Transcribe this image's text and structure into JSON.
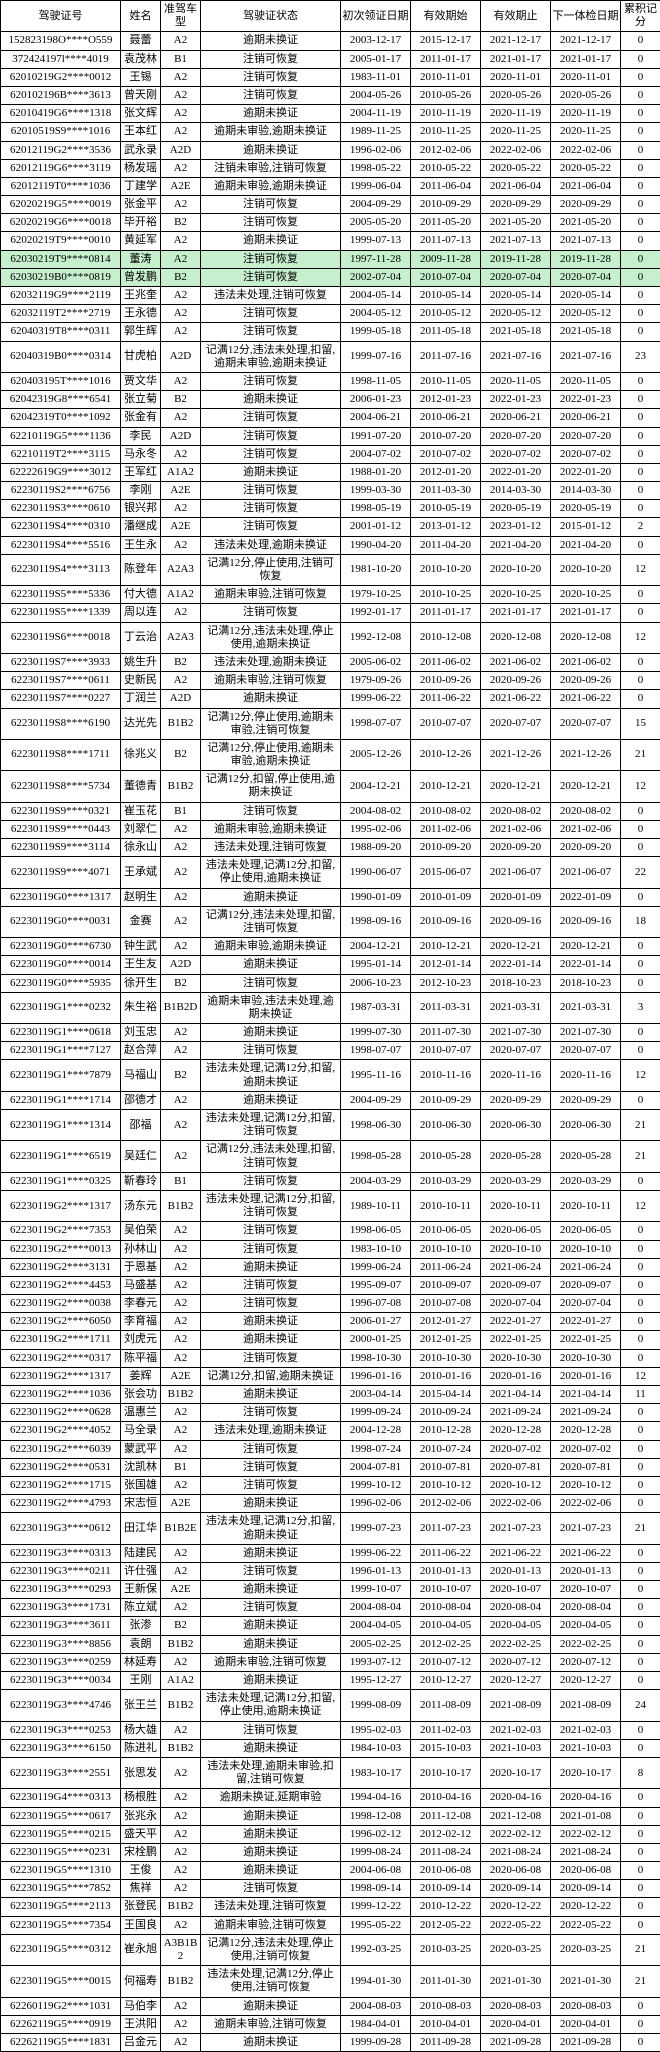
{
  "columns": [
    "驾驶证号",
    "姓名",
    "准驾车型",
    "驾驶证状态",
    "初次领证日期",
    "有效期始",
    "有效期止",
    "下一体检日期",
    "累积记分"
  ],
  "widths": [
    120,
    40,
    40,
    140,
    70,
    70,
    70,
    70,
    40
  ],
  "rows": [
    [
      "152823198O****O559",
      "聂蕾",
      "A2",
      "逾期未换证",
      "2003-12-17",
      "2015-12-17",
      "2021-12-17",
      "2021-12-17",
      "0"
    ],
    [
      "372424197l****4019",
      "袁茂林",
      "B1",
      "注销可恢复",
      "2005-01-17",
      "2011-01-17",
      "2021-01-17",
      "2021-01-17",
      "0"
    ],
    [
      "62010219G2****0012",
      "王锡",
      "A2",
      "注销可恢复",
      "1983-11-01",
      "2010-11-01",
      "2020-11-01",
      "2020-11-01",
      "0"
    ],
    [
      "620102196B****3613",
      "曾天刚",
      "A2",
      "注销可恢复",
      "2004-05-26",
      "2010-05-26",
      "2020-05-26",
      "2020-05-26",
      "0"
    ],
    [
      "62010419G6****1318",
      "张文辉",
      "A2",
      "逾期未换证",
      "2004-11-19",
      "2010-11-19",
      "2020-11-19",
      "2020-11-19",
      "0"
    ],
    [
      "62010519S9****1016",
      "王本红",
      "A2",
      "逾期未审验,逾期未换证",
      "1989-11-25",
      "2010-11-25",
      "2020-11-25",
      "2020-11-25",
      "0"
    ],
    [
      "62012119G2****3536",
      "武永录",
      "A2D",
      "逾期未换证",
      "1996-02-06",
      "2012-02-06",
      "2022-02-06",
      "2022-02-06",
      "0"
    ],
    [
      "62012119G6****3119",
      "杨发瑶",
      "A2",
      "注销未审验,注销可恢复",
      "1998-05-22",
      "2010-05-22",
      "2020-05-22",
      "2020-05-22",
      "0"
    ],
    [
      "62012119T0****1036",
      "丁建学",
      "A2E",
      "逾期未审验,逾期未换证",
      "1999-06-04",
      "2011-06-04",
      "2021-06-04",
      "2021-06-04",
      "0"
    ],
    [
      "62020219G5****0019",
      "张金平",
      "A2",
      "注销可恢复",
      "2004-09-29",
      "2010-09-29",
      "2020-09-29",
      "2020-09-29",
      "0"
    ],
    [
      "62020219G6****0018",
      "毕开裕",
      "B2",
      "注销可恢复",
      "2005-05-20",
      "2011-05-20",
      "2021-05-20",
      "2021-05-20",
      "0"
    ],
    [
      "62020219T9****0010",
      "黄延军",
      "A2",
      "逾期未换证",
      "1999-07-13",
      "2011-07-13",
      "2021-07-13",
      "2021-07-13",
      "0"
    ],
    [
      "62030219T9****0814",
      "董涛",
      "A2",
      "注销可恢复",
      "1997-11-28",
      "2009-11-28",
      "2019-11-28",
      "2019-11-28",
      "0",
      true
    ],
    [
      "62030219B0****0819",
      "曾发鹏",
      "B2",
      "注销可恢复",
      "2002-07-04",
      "2010-07-04",
      "2020-07-04",
      "2020-07-04",
      "0",
      true
    ],
    [
      "62032119G9****2119",
      "王兆奎",
      "A2",
      "违法未处理,注销可恢复",
      "2004-05-14",
      "2010-05-14",
      "2020-05-14",
      "2020-05-14",
      "0"
    ],
    [
      "62032119T2****2719",
      "王永德",
      "A2",
      "注销可恢复",
      "2004-05-12",
      "2010-05-12",
      "2020-05-12",
      "2020-05-12",
      "0"
    ],
    [
      "62040319T8****0311",
      "郭生辉",
      "A2",
      "注销可恢复",
      "1999-05-18",
      "2011-05-18",
      "2021-05-18",
      "2021-05-18",
      "0"
    ],
    [
      "62040319B0****0314",
      "甘虎柏",
      "A2D",
      "记满12分,违法未处理,扣留,逾期未审验,逾期未换证",
      "1999-07-16",
      "2011-07-16",
      "2021-07-16",
      "2021-07-16",
      "23"
    ],
    [
      "620403195T****1016",
      "贾文华",
      "A2",
      "注销可恢复",
      "1998-11-05",
      "2010-11-05",
      "2020-11-05",
      "2020-11-05",
      "0"
    ],
    [
      "62042319G8****6541",
      "张立菊",
      "B2",
      "逾期未换证",
      "2006-01-23",
      "2012-01-23",
      "2022-01-23",
      "2022-01-23",
      "0"
    ],
    [
      "62042319T0****1092",
      "张金有",
      "A2",
      "注销可恢复",
      "2004-06-21",
      "2010-06-21",
      "2020-06-21",
      "2020-06-21",
      "0"
    ],
    [
      "62210119G5****1136",
      "李民",
      "A2D",
      "注销可恢复",
      "1991-07-20",
      "2010-07-20",
      "2020-07-20",
      "2020-07-20",
      "0"
    ],
    [
      "62210119T2****3115",
      "马永冬",
      "A2",
      "注销可恢复",
      "2004-07-02",
      "2010-07-02",
      "2020-07-02",
      "2020-07-02",
      "0"
    ],
    [
      "62222619G9****3012",
      "王军红",
      "A1A2",
      "逾期未换证",
      "1988-01-20",
      "2012-01-20",
      "2022-01-20",
      "2022-01-20",
      "0"
    ],
    [
      "62230119S2****6756",
      "李刚",
      "A2E",
      "注销可恢复",
      "1999-03-30",
      "2011-03-30",
      "2014-03-30",
      "2014-03-30",
      "0"
    ],
    [
      "62230119S3****0610",
      "银兴邦",
      "A2",
      "注销可恢复",
      "1998-05-19",
      "2010-05-19",
      "2020-05-19",
      "2020-05-19",
      "0"
    ],
    [
      "62230119S4****0310",
      "潘继成",
      "A2E",
      "注销可恢复",
      "2001-01-12",
      "2013-01-12",
      "2023-01-12",
      "2015-01-12",
      "2"
    ],
    [
      "62230119S4****5516",
      "王生永",
      "A2",
      "违法未处理,逾期未换证",
      "1990-04-20",
      "2011-04-20",
      "2021-04-20",
      "2021-04-20",
      "0"
    ],
    [
      "62230119S4****3113",
      "陈登年",
      "A2A3",
      "记满12分,停止使用,注销可恢复",
      "1981-10-20",
      "2010-10-20",
      "2020-10-20",
      "2020-10-20",
      "12"
    ],
    [
      "62230119S5****5336",
      "付大德",
      "A1A2",
      "逾期未审验,注销可恢复",
      "1979-10-25",
      "2010-10-25",
      "2020-10-25",
      "2020-10-25",
      "0"
    ],
    [
      "62230119S5****1339",
      "周以连",
      "A2",
      "注销可恢复",
      "1992-01-17",
      "2011-01-17",
      "2021-01-17",
      "2021-01-17",
      "0"
    ],
    [
      "62230119S6****0018",
      "丁云治",
      "A2A3",
      "记满12分,违法未处理,停止使用,逾期未换证",
      "1992-12-08",
      "2010-12-08",
      "2020-12-08",
      "2020-12-08",
      "12"
    ],
    [
      "62230119S7****3933",
      "姚生升",
      "B2",
      "违法未处理,逾期未换证",
      "2005-06-02",
      "2011-06-02",
      "2021-06-02",
      "2021-06-02",
      "0"
    ],
    [
      "62230119S7****0611",
      "史新民",
      "A2",
      "逾期未审验,注销可恢复",
      "1979-09-26",
      "2010-09-26",
      "2020-09-26",
      "2020-09-26",
      "0"
    ],
    [
      "62230119S7****0227",
      "丁润兰",
      "A2D",
      "逾期未换证",
      "1999-06-22",
      "2011-06-22",
      "2021-06-22",
      "2021-06-22",
      "0"
    ],
    [
      "62230119S8****6190",
      "达光先",
      "B1B2",
      "记满12分,停止使用,逾期未审验,注销可恢复",
      "1998-07-07",
      "2010-07-07",
      "2020-07-07",
      "2020-07-07",
      "15"
    ],
    [
      "62230119S8****1711",
      "徐兆义",
      "B2",
      "记满12分,停止使用,逾期未审验,逾期未换证",
      "2005-12-26",
      "2010-12-26",
      "2021-12-26",
      "2021-12-26",
      "21"
    ],
    [
      "62230119S8****5734",
      "董德青",
      "B1B2",
      "记满12分,扣留,停止使用,逾期未换证",
      "2004-12-21",
      "2010-12-21",
      "2020-12-21",
      "2020-12-21",
      "12"
    ],
    [
      "62230119S9****0321",
      "崔玉花",
      "B1",
      "注销可恢复",
      "2004-08-02",
      "2010-08-02",
      "2020-08-02",
      "2020-08-02",
      "0"
    ],
    [
      "62230119S9****0443",
      "刘翠仁",
      "A2",
      "逾期未审验,逾期未换证",
      "1995-02-06",
      "2011-02-06",
      "2021-02-06",
      "2021-02-06",
      "0"
    ],
    [
      "62230119S9****3114",
      "徐永山",
      "A2",
      "违法未处理,注销可恢复",
      "1988-09-20",
      "2010-09-20",
      "2020-09-20",
      "2020-09-20",
      "0"
    ],
    [
      "62230119S9****4071",
      "王承斌",
      "A2",
      "违法未处理,记满12分,扣留,停止使用,逾期未换证",
      "1990-06-07",
      "2015-06-07",
      "2021-06-07",
      "2021-06-07",
      "22"
    ],
    [
      "62230119G0****1317",
      "赵明生",
      "A2",
      "逾期未换证",
      "1990-01-09",
      "2010-01-09",
      "2020-01-09",
      "2022-01-09",
      "0"
    ],
    [
      "62230119G0****0031",
      "金赛",
      "A2",
      "记满12分,违法未处理,扣留,注销可恢复",
      "1998-09-16",
      "2010-09-16",
      "2020-09-16",
      "2020-09-16",
      "18"
    ],
    [
      "62230119G0****6730",
      "钟生武",
      "A2",
      "逾期未审验,逾期未换证",
      "2004-12-21",
      "2010-12-21",
      "2020-12-21",
      "2020-12-21",
      "0"
    ],
    [
      "62230119G0****0014",
      "王生友",
      "A2D",
      "逾期未换证",
      "1995-01-14",
      "2012-01-14",
      "2022-01-14",
      "2022-01-14",
      "0"
    ],
    [
      "62230119G0****5935",
      "徐开生",
      "B2",
      "注销可恢复",
      "2006-10-23",
      "2012-10-23",
      "2018-10-23",
      "2018-10-23",
      "0"
    ],
    [
      "62230119G1****0232",
      "朱生裕",
      "B1B2D",
      "逾期未审验,违法未处理,逾期未换证",
      "1987-03-31",
      "2011-03-31",
      "2021-03-31",
      "2021-03-31",
      "3"
    ],
    [
      "62230119G1****0618",
      "刘玉忠",
      "A2",
      "逾期未换证",
      "1999-07-30",
      "2011-07-30",
      "2021-07-30",
      "2021-07-30",
      "0"
    ],
    [
      "62230119G1****7127",
      "赵合萍",
      "A2",
      "注销可恢复",
      "1998-07-07",
      "2010-07-07",
      "2020-07-07",
      "2020-07-07",
      "0"
    ],
    [
      "62230119G1****7879",
      "马福山",
      "B2",
      "违法未处理,记满12分,扣留,逾期未换证",
      "1995-11-16",
      "2010-11-16",
      "2020-11-16",
      "2020-11-16",
      "12"
    ],
    [
      "62230119G1****1714",
      "邵德才",
      "A2",
      "逾期未换证",
      "2004-09-29",
      "2010-09-29",
      "2020-09-29",
      "2020-09-29",
      "0"
    ],
    [
      "62230119G1****1314",
      "邵福",
      "A2",
      "违法未处理,记满12分,扣留,注销可恢复",
      "1998-06-30",
      "2010-06-30",
      "2020-06-30",
      "2020-06-30",
      "21"
    ],
    [
      "62230119G1****6519",
      "吴廷仁",
      "A2",
      "记满12分,违法未处理,扣留,注销可恢复",
      "1998-05-28",
      "2010-05-28",
      "2020-05-28",
      "2020-05-28",
      "21"
    ],
    [
      "62230119G1****0325",
      "靳春玲",
      "B1",
      "注销可恢复",
      "2004-03-29",
      "2010-03-29",
      "2020-03-29",
      "2020-03-29",
      "0"
    ],
    [
      "62230119G2****1317",
      "汤东元",
      "B1B2",
      "违法未处理,记满12分,扣留,注销可恢复",
      "1989-10-11",
      "2010-10-11",
      "2020-10-11",
      "2020-10-11",
      "12"
    ],
    [
      "62230119G2****7353",
      "吴伯荣",
      "A2",
      "注销可恢复",
      "1998-06-05",
      "2010-06-05",
      "2020-06-05",
      "2020-06-05",
      "0"
    ],
    [
      "62230119G2****0013",
      "孙林山",
      "A2",
      "注销可恢复",
      "1983-10-10",
      "2010-10-10",
      "2020-10-10",
      "2020-10-10",
      "0"
    ],
    [
      "62230119G2****3131",
      "于恩基",
      "A2",
      "逾期未换证",
      "1999-06-24",
      "2011-06-24",
      "2021-06-24",
      "2021-06-24",
      "0"
    ],
    [
      "62230119G2****4453",
      "马盛基",
      "A2",
      "注销可恢复",
      "1995-09-07",
      "2010-09-07",
      "2020-09-07",
      "2020-09-07",
      "0"
    ],
    [
      "62230119G2****0038",
      "李春元",
      "A2",
      "注销可恢复",
      "1996-07-08",
      "2010-07-08",
      "2020-07-04",
      "2020-07-04",
      "0"
    ],
    [
      "62230119G2****6050",
      "李育福",
      "A2",
      "逾期未换证",
      "2006-01-27",
      "2012-01-27",
      "2022-01-27",
      "2022-01-27",
      "0"
    ],
    [
      "62230119G2****1711",
      "刘虎元",
      "A2",
      "逾期未换证",
      "2000-01-25",
      "2012-01-25",
      "2022-01-25",
      "2022-01-25",
      "0"
    ],
    [
      "62230119G2****0317",
      "陈平福",
      "A2",
      "注销可恢复",
      "1998-10-30",
      "2010-10-30",
      "2020-10-30",
      "2020-10-30",
      "0"
    ],
    [
      "62230119G2****1317",
      "姜辉",
      "A2E",
      "记满12分,扣留,逾期未换证",
      "1996-01-16",
      "2010-01-16",
      "2020-01-16",
      "2020-01-16",
      "12"
    ],
    [
      "62230119G2****1036",
      "张会功",
      "B1B2",
      "逾期未换证",
      "2003-04-14",
      "2015-04-14",
      "2021-04-14",
      "2021-04-14",
      "11"
    ],
    [
      "62230119G2****0628",
      "温惠兰",
      "A2",
      "注销可恢复",
      "1999-09-24",
      "2010-09-24",
      "2021-09-24",
      "2021-09-24",
      "0"
    ],
    [
      "62230119G2****4052",
      "马全录",
      "A2",
      "违法未处理,逾期未换证",
      "2004-12-28",
      "2010-12-28",
      "2020-12-28",
      "2020-12-28",
      "0"
    ],
    [
      "62230119G2****6039",
      "蒙武平",
      "A2",
      "注销可恢复",
      "1998-07-24",
      "2010-07-24",
      "2020-07-02",
      "2020-07-02",
      "0"
    ],
    [
      "62230119G2****0531",
      "沈凯林",
      "B1",
      "注销可恢复",
      "2004-07-81",
      "2010-07-81",
      "2020-07-81",
      "2020-07-81",
      "0"
    ],
    [
      "62230119G2****1715",
      "张国雄",
      "A2",
      "注销可恢复",
      "1999-10-12",
      "2010-10-12",
      "2020-10-12",
      "2020-10-12",
      "0"
    ],
    [
      "62230119G2****4793",
      "宋志恒",
      "A2E",
      "逾期未换证",
      "1996-02-06",
      "2012-02-06",
      "2022-02-06",
      "2022-02-06",
      "0"
    ],
    [
      "62230119G3****0612",
      "田江华",
      "B1B2E",
      "违法未处理,记满12分,扣留,逾期未换证",
      "1999-07-23",
      "2011-07-23",
      "2021-07-23",
      "2021-07-23",
      "21"
    ],
    [
      "62230119G3****0313",
      "陆建民",
      "A2",
      "逾期未换证",
      "1999-06-22",
      "2011-06-22",
      "2021-06-22",
      "2021-06-22",
      "0"
    ],
    [
      "62230119G3****0211",
      "许仕强",
      "A2",
      "注销可恢复",
      "1996-01-13",
      "2010-01-13",
      "2020-01-13",
      "2020-01-13",
      "0"
    ],
    [
      "62230119G3****0293",
      "王新保",
      "A2E",
      "逾期未换证",
      "1999-10-07",
      "2010-10-07",
      "2020-10-07",
      "2020-10-07",
      "0"
    ],
    [
      "62230119G3****1731",
      "陈立斌",
      "A2",
      "注销可恢复",
      "2004-08-04",
      "2010-08-04",
      "2020-08-04",
      "2020-08-04",
      "0"
    ],
    [
      "62230119G3****3611",
      "张渗",
      "B2",
      "逾期未换证",
      "2004-04-05",
      "2010-04-05",
      "2020-04-05",
      "2020-04-05",
      "0"
    ],
    [
      "62230119G3****8856",
      "袁朗",
      "B1B2",
      "逾期未换证",
      "2005-02-25",
      "2012-02-25",
      "2022-02-25",
      "2022-02-25",
      "0"
    ],
    [
      "62230119G3****0259",
      "林延寿",
      "A2",
      "逾期未审验,注销可恢复",
      "1993-07-12",
      "2010-07-12",
      "2020-07-12",
      "2020-07-12",
      "0"
    ],
    [
      "62230119G3****0034",
      "王刚",
      "A1A2",
      "逾期未换证",
      "1995-12-27",
      "2010-12-27",
      "2020-12-27",
      "2020-12-27",
      "0"
    ],
    [
      "62230119G3****4746",
      "张王兰",
      "B1B2",
      "违法未处理,记满12分,扣留,停止使用,逾期未换证",
      "1999-08-09",
      "2011-08-09",
      "2021-08-09",
      "2021-08-09",
      "24"
    ],
    [
      "62230119G3****0253",
      "杨大雄",
      "A2",
      "注销可恢复",
      "1995-02-03",
      "2011-02-03",
      "2021-02-03",
      "2021-02-03",
      "0"
    ],
    [
      "62230119G3****6150",
      "陈进礼",
      "B1B2",
      "逾期未换证",
      "1984-10-03",
      "2015-10-03",
      "2021-10-03",
      "2021-10-03",
      "0"
    ],
    [
      "62230119G3****2551",
      "张思发",
      "A2",
      "违法未处理,逾期未审验,扣留,注销可恢复",
      "1983-10-17",
      "2010-10-17",
      "2020-10-17",
      "2020-10-17",
      "8"
    ],
    [
      "62230119G4****0313",
      "杨根胜",
      "A2",
      "逾期未换证,延期审验",
      "1994-04-16",
      "2010-04-16",
      "2020-04-16",
      "2020-04-16",
      "0"
    ],
    [
      "62230119G5****0617",
      "张兆永",
      "A2",
      "逾期未换证",
      "1998-12-08",
      "2011-12-08",
      "2021-12-08",
      "2021-01-08",
      "0"
    ],
    [
      "62230119G5****0215",
      "盛天平",
      "A2",
      "逾期未换证",
      "1996-02-12",
      "2012-02-12",
      "2022-02-12",
      "2022-02-12",
      "0"
    ],
    [
      "62230119G5****0231",
      "宋栓鹏",
      "A2",
      "逾期未换证",
      "1999-08-24",
      "2011-08-24",
      "2021-08-24",
      "2021-08-24",
      "0"
    ],
    [
      "62230119G5****1310",
      "王俊",
      "A2",
      "逾期未换证",
      "2004-06-08",
      "2010-06-08",
      "2020-06-08",
      "2020-06-08",
      "0"
    ],
    [
      "62230119G5****7852",
      "焦祥",
      "A2",
      "注销可恢复",
      "1998-09-14",
      "2010-09-14",
      "2020-09-14",
      "2020-09-14",
      "0"
    ],
    [
      "62230119G5****2113",
      "张登民",
      "B1B2",
      "违法未处理,注销可恢复",
      "1999-12-22",
      "2010-12-22",
      "2020-12-22",
      "2020-12-22",
      "0"
    ],
    [
      "62230119G5****7354",
      "王国良",
      "A2",
      "逾期未审验,注销可恢复",
      "1995-05-22",
      "2012-05-22",
      "2022-05-22",
      "2022-05-22",
      "0"
    ],
    [
      "62230119G5****0312",
      "崔永旭",
      "A3B1B2",
      "记满12分,违法未处理,停止使用,注销可恢复",
      "1992-03-25",
      "2010-03-25",
      "2020-03-25",
      "2020-03-25",
      "21"
    ],
    [
      "62230119G5****0015",
      "何福寿",
      "B1B2",
      "违法未处理,记满12分,停止使用,注销可恢复",
      "1994-01-30",
      "2011-01-30",
      "2021-01-30",
      "2021-01-30",
      "21"
    ],
    [
      "62260119G2****1031",
      "马伯李",
      "A2",
      "逾期未换证",
      "2004-08-03",
      "2010-08-03",
      "2020-08-03",
      "2020-08-03",
      "0"
    ],
    [
      "62262119G5****0919",
      "王洪阳",
      "A2",
      "逾期未审验,注销可恢复",
      "1984-04-01",
      "2010-04-01",
      "2020-04-01",
      "2020-04-01",
      "0"
    ],
    [
      "62262119G5****1831",
      "吕金元",
      "A2",
      "逾期未换证",
      "1999-09-28",
      "2011-09-28",
      "2021-09-28",
      "2021-09-28",
      "0"
    ]
  ]
}
